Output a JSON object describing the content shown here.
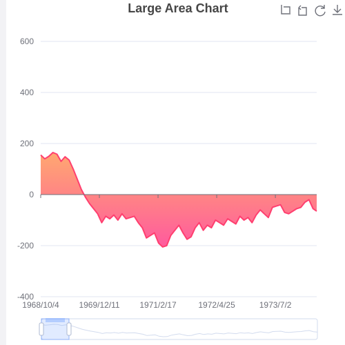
{
  "title": "Large Area Chart",
  "toolbox": {
    "icons": [
      "data-zoom-icon",
      "data-zoom-reset-icon",
      "restore-icon",
      "save-image-icon"
    ]
  },
  "chart_data": {
    "type": "area",
    "title": "Large Area Chart",
    "xlabel": "",
    "ylabel": "",
    "ylim": [
      -400,
      600
    ],
    "yticks": [
      600,
      400,
      200,
      0,
      -200,
      -400
    ],
    "xlim": [
      "1968/10/4",
      "1974/5/3"
    ],
    "xtick_labels": [
      "1968/10/4",
      "1969/12/11",
      "1971/2/17",
      "1972/4/25",
      "1973/7/2"
    ],
    "grid": true,
    "legend": "none",
    "colors": {
      "line": "#ff3f6f",
      "fill_top": "#ffa870",
      "fill_bottom": "#ff5a9e",
      "grid": "#e0e6f1",
      "axis": "#6e7079"
    },
    "x": [
      "1968/10/4",
      "1968/11/3",
      "1968/12/3",
      "1969/1/2",
      "1969/2/1",
      "1969/3/3",
      "1969/4/2",
      "1969/5/2",
      "1969/6/1",
      "1969/7/1",
      "1969/7/31",
      "1969/8/30",
      "1969/9/29",
      "1969/10/29",
      "1969/11/28",
      "1969/12/28",
      "1970/1/27",
      "1970/2/26",
      "1970/3/28",
      "1970/4/27",
      "1970/5/27",
      "1970/6/26",
      "1970/7/26",
      "1970/8/25",
      "1970/9/24",
      "1970/10/24",
      "1970/11/23",
      "1970/12/23",
      "1971/1/22",
      "1971/2/21",
      "1971/3/23",
      "1971/4/22",
      "1971/5/22",
      "1971/6/21",
      "1971/7/21",
      "1971/8/20",
      "1971/9/19",
      "1971/10/19",
      "1971/11/18",
      "1971/12/18",
      "1972/1/17",
      "1972/2/16",
      "1972/3/17",
      "1972/4/16",
      "1972/5/16",
      "1972/6/15",
      "1972/7/15",
      "1972/8/14",
      "1972/9/13",
      "1972/10/13",
      "1972/11/12",
      "1972/12/12",
      "1973/1/11",
      "1973/2/10",
      "1973/3/12",
      "1973/4/11",
      "1973/5/11",
      "1973/6/10",
      "1973/7/10",
      "1973/8/9",
      "1973/9/8",
      "1973/10/8",
      "1973/11/7",
      "1973/12/7",
      "1974/1/6",
      "1974/2/5",
      "1974/3/7",
      "1974/4/6",
      "1974/5/3"
    ],
    "series": [
      {
        "values": [
          155,
          140,
          150,
          165,
          158,
          130,
          148,
          135,
          100,
          60,
          20,
          -10,
          -35,
          -55,
          -75,
          -110,
          -85,
          -95,
          -80,
          -100,
          -75,
          -95,
          -90,
          -85,
          -110,
          -130,
          -170,
          -160,
          -150,
          -190,
          -205,
          -200,
          -160,
          -140,
          -120,
          -150,
          -175,
          -165,
          -130,
          -110,
          -140,
          -120,
          -130,
          -100,
          -110,
          -120,
          -95,
          -105,
          -115,
          -85,
          -100,
          -90,
          -110,
          -80,
          -60,
          -75,
          -90,
          -50,
          -45,
          -40,
          -70,
          -75,
          -65,
          -55,
          -50,
          -30,
          -20,
          -55,
          -65
        ]
      }
    ],
    "datazoom": {
      "start_fraction": 0,
      "end_fraction": 0.1
    }
  }
}
